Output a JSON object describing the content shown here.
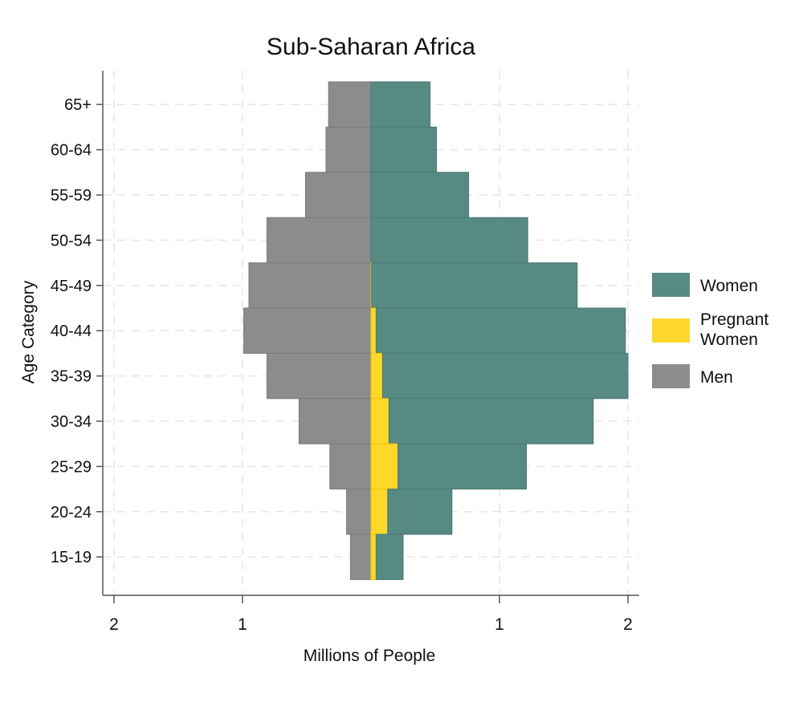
{
  "chart_data": {
    "type": "bar",
    "orientation": "horizontal",
    "layout": "population-pyramid",
    "title": "Sub-Saharan Africa",
    "xlabel": "Millions of People",
    "ylabel": "Age Category",
    "xlim": [
      -2,
      2
    ],
    "xticks": [
      {
        "value": -2,
        "label": "2"
      },
      {
        "value": -1,
        "label": "1"
      },
      {
        "value": 1,
        "label": "1"
      },
      {
        "value": 2,
        "label": "2"
      }
    ],
    "grid": true,
    "legend_position": "right",
    "categories": [
      "65+",
      "60-64",
      "55-59",
      "50-54",
      "45-49",
      "40-44",
      "35-39",
      "30-34",
      "25-29",
      "20-24",
      "15-19"
    ],
    "series": [
      {
        "name": "Women",
        "side": "right",
        "stacked_after": "Pregnant Women",
        "color": "#568a82",
        "values": [
          0.46,
          0.51,
          0.76,
          1.22,
          1.6,
          1.94,
          1.91,
          1.59,
          1.0,
          0.5,
          0.21
        ]
      },
      {
        "name": "Pregnant Women",
        "side": "right",
        "color": "#fdd72a",
        "values": [
          0,
          0,
          0,
          0,
          0.005,
          0.04,
          0.09,
          0.14,
          0.21,
          0.13,
          0.04
        ]
      },
      {
        "name": "Men",
        "side": "left",
        "color": "#8c8c8c",
        "values": [
          0.33,
          0.35,
          0.51,
          0.81,
          0.95,
          0.99,
          0.81,
          0.56,
          0.32,
          0.19,
          0.16
        ]
      }
    ],
    "legend": [
      {
        "label": "Women",
        "color": "#568a82"
      },
      {
        "label": "Pregnant Women",
        "lines": [
          "Pregnant",
          "Women"
        ],
        "color": "#fdd72a"
      },
      {
        "label": "Men",
        "color": "#8c8c8c"
      }
    ]
  }
}
